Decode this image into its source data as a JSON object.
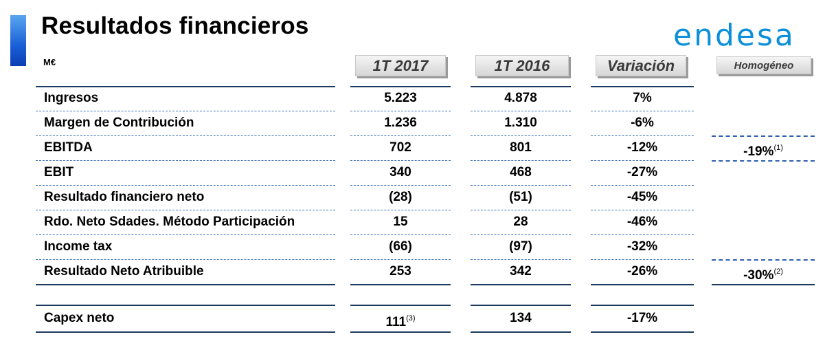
{
  "header": {
    "title": "Resultados financieros",
    "logo_text": "endesa",
    "unit": "M€"
  },
  "columns": [
    "1T 2017",
    "1T 2016",
    "Variación",
    "Homogéneo"
  ],
  "rows": [
    {
      "label": "Ingresos",
      "v2017": "5.223",
      "v2016": "4.878",
      "var": "7%",
      "hom": "",
      "hom_note": ""
    },
    {
      "label": "Margen de Contribución",
      "v2017": "1.236",
      "v2016": "1.310",
      "var": "-6%",
      "hom": "",
      "hom_note": ""
    },
    {
      "label": "EBITDA",
      "v2017": "702",
      "v2016": "801",
      "var": "-12%",
      "hom": "-19%",
      "hom_note": "(1)"
    },
    {
      "label": "EBIT",
      "v2017": "340",
      "v2016": "468",
      "var": "-27%",
      "hom": "",
      "hom_note": ""
    },
    {
      "label": "Resultado financiero neto",
      "v2017": "(28)",
      "v2016": "(51)",
      "var": "-45%",
      "hom": "",
      "hom_note": ""
    },
    {
      "label": "Rdo. Neto Sdades. Método Participación",
      "v2017": "15",
      "v2016": "28",
      "var": "-46%",
      "hom": "",
      "hom_note": ""
    },
    {
      "label": "Income tax",
      "v2017": "(66)",
      "v2016": "(97)",
      "var": "-32%",
      "hom": "",
      "hom_note": ""
    },
    {
      "label": "Resultado Neto Atribuible",
      "v2017": "253",
      "v2016": "342",
      "var": "-26%",
      "hom": "-30%",
      "hom_note": "(2)"
    }
  ],
  "capex": {
    "label": "Capex neto",
    "v2017": "111",
    "v2017_note": "(3)",
    "v2016": "134",
    "var": "-17%"
  },
  "colors": {
    "accent": "#1a5fd6",
    "logo": "#0a8fd8",
    "rule": "#1b3a5e",
    "dash": "#3a6fb8"
  }
}
